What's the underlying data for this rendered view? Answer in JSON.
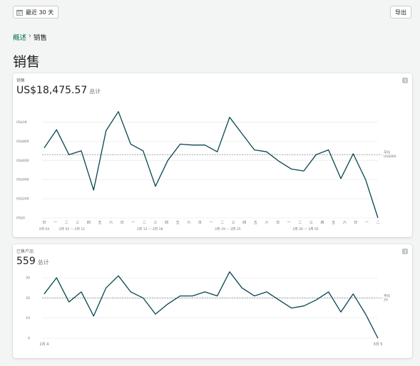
{
  "topbar": {
    "range_label": "最近 30 天",
    "export_label": "导出"
  },
  "breadcrumb": {
    "parent": "概述",
    "separator": "›",
    "current": "销售"
  },
  "page_title": "销售",
  "colors": {
    "line": "#08454f",
    "grid": "#e4e5e7",
    "avg": "#8c9196",
    "link": "#006e52"
  },
  "chart_data": [
    {
      "type": "line",
      "label": "销售",
      "headline": "US$18,475.57",
      "headline_suffix": "总计",
      "yticks": [
        "US$0",
        "US$200",
        "US$400",
        "US$600",
        "US$800",
        "US$1K"
      ],
      "ytick_values": [
        0,
        200,
        400,
        600,
        800,
        1000
      ],
      "ylim": [
        0,
        1100
      ],
      "weekday_ticks": [
        "日",
        "一",
        "二",
        "三",
        "四",
        "五",
        "六",
        "日",
        "一",
        "二",
        "三",
        "四",
        "五",
        "六",
        "日",
        "一",
        "二",
        "三",
        "四",
        "五",
        "六",
        "日",
        "一",
        "二",
        "三",
        "四",
        "五",
        "六",
        "日",
        "一",
        "二"
      ],
      "date_ticks": [
        "2月 04",
        "2月 05 — 2月 11",
        "2月 12 — 2月 18",
        "2月 19 — 2月 25",
        "2月 26 — 3月 05"
      ],
      "values": [
        730,
        920,
        660,
        700,
        290,
        910,
        1110,
        770,
        700,
        330,
        600,
        770,
        760,
        760,
        690,
        1050,
        880,
        710,
        690,
        590,
        510,
        490,
        660,
        710,
        410,
        670,
        400,
        0
      ],
      "average": 660,
      "average_label": "平均",
      "average_value_label": "US$660"
    },
    {
      "type": "line",
      "label": "已售产品",
      "headline": "559",
      "headline_suffix": "总计",
      "yticks": [
        "0",
        "10",
        "20",
        "30"
      ],
      "ytick_values": [
        0,
        10,
        20,
        30
      ],
      "ylim": [
        0,
        35
      ],
      "date_ticks": [
        "2月 4",
        "3月 5"
      ],
      "values": [
        22,
        30,
        18,
        23,
        11,
        25,
        31,
        23,
        20,
        12,
        17,
        21,
        21,
        23,
        21,
        33,
        25,
        21,
        23,
        19,
        15,
        16,
        19,
        23,
        13,
        22,
        12,
        0
      ],
      "average": 20,
      "average_label": "平均",
      "average_value_label": "20"
    }
  ]
}
